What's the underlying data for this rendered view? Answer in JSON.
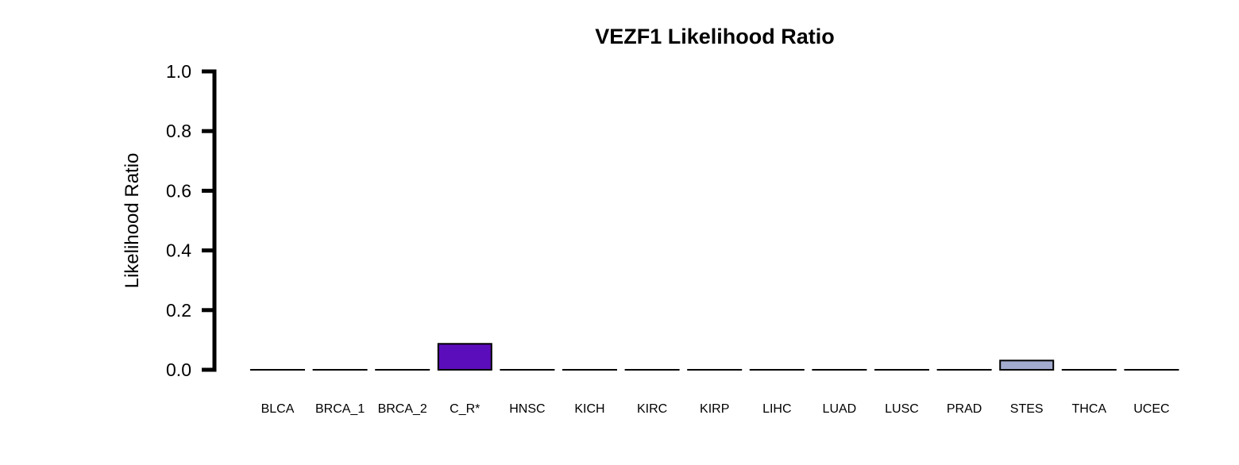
{
  "chart_data": {
    "type": "bar",
    "title": "VEZF1 Likelihood Ratio",
    "ylabel": "Likelihood Ratio",
    "xlabel": "",
    "ylim": [
      0,
      1
    ],
    "yticks": [
      "0.0",
      "0.2",
      "0.4",
      "0.6",
      "0.8",
      "1.0"
    ],
    "grid": false,
    "categories": [
      "BLCA",
      "BRCA_1",
      "BRCA_2",
      "C_R*",
      "HNSC",
      "KICH",
      "KIRC",
      "KIRP",
      "LIHC",
      "LUAD",
      "LUSC",
      "PRAD",
      "STES",
      "THCA",
      "UCEC"
    ],
    "values": [
      0,
      0,
      0,
      0.087,
      0,
      0,
      0,
      0,
      0,
      0,
      0,
      0,
      0.031,
      0,
      0
    ],
    "colors": [
      "#ffffff",
      "#ffffff",
      "#ffffff",
      "#5b0dbb",
      "#ffffff",
      "#ffffff",
      "#ffffff",
      "#ffffff",
      "#ffffff",
      "#ffffff",
      "#ffffff",
      "#ffffff",
      "#a3acce",
      "#ffffff",
      "#ffffff"
    ]
  }
}
